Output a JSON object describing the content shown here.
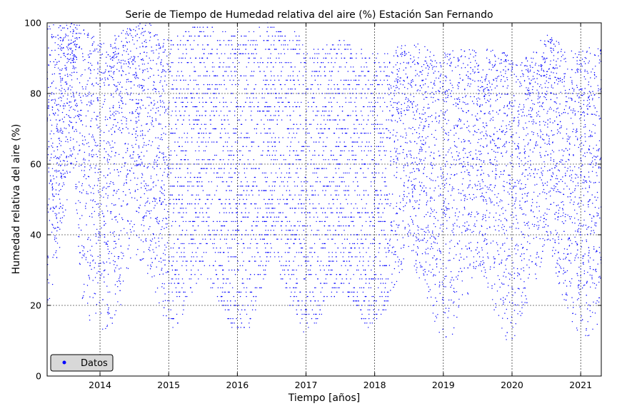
{
  "chart_data": {
    "type": "scatter",
    "title": "Serie de Tiempo de Humedad relativa del aire (%) Estación San Fernando",
    "xlabel": "Tiempo [años]",
    "ylabel": "Humedad relativa del aire (%)",
    "xlim": [
      2013.23,
      2021.3
    ],
    "ylim": [
      0,
      100
    ],
    "x_ticks": [
      2014,
      2015,
      2016,
      2017,
      2018,
      2019,
      2020,
      2021
    ],
    "y_ticks": [
      0,
      20,
      40,
      60,
      80,
      100
    ],
    "grid": true,
    "legend": {
      "position": "lower-left",
      "entries": [
        "Datos"
      ]
    },
    "series": [
      {
        "name": "Datos",
        "color": "#0000ff",
        "marker": "point",
        "envelope": [
          {
            "x": 2013.25,
            "y_min": 17,
            "y_max": 100
          },
          {
            "x": 2013.45,
            "y_min": 40,
            "y_max": 100
          },
          {
            "x": 2013.6,
            "y_min": 60,
            "y_max": 100
          },
          {
            "x": 2013.75,
            "y_min": 18,
            "y_max": 100
          },
          {
            "x": 2014.0,
            "y_min": 12,
            "y_max": 95
          },
          {
            "x": 2014.25,
            "y_min": 15,
            "y_max": 97
          },
          {
            "x": 2014.5,
            "y_min": 35,
            "y_max": 100
          },
          {
            "x": 2014.75,
            "y_min": 25,
            "y_max": 100
          },
          {
            "x": 2014.9,
            "y_min": 15,
            "y_max": 95
          },
          {
            "x": 2015.1,
            "y_min": 13,
            "y_max": 97
          },
          {
            "x": 2015.5,
            "y_min": 30,
            "y_max": 100
          },
          {
            "x": 2015.9,
            "y_min": 14,
            "y_max": 97
          },
          {
            "x": 2016.2,
            "y_min": 13,
            "y_max": 98
          },
          {
            "x": 2016.5,
            "y_min": 35,
            "y_max": 100
          },
          {
            "x": 2016.9,
            "y_min": 12,
            "y_max": 97
          },
          {
            "x": 2017.0,
            "y_min": 11,
            "y_max": 92
          },
          {
            "x": 2017.5,
            "y_min": 25,
            "y_max": 95
          },
          {
            "x": 2017.9,
            "y_min": 13,
            "y_max": 92
          },
          {
            "x": 2018.2,
            "y_min": 20,
            "y_max": 92
          },
          {
            "x": 2018.5,
            "y_min": 35,
            "y_max": 95
          },
          {
            "x": 2018.9,
            "y_min": 11,
            "y_max": 92
          },
          {
            "x": 2019.1,
            "y_min": 10,
            "y_max": 92
          },
          {
            "x": 2019.5,
            "y_min": 30,
            "y_max": 93
          },
          {
            "x": 2019.9,
            "y_min": 10,
            "y_max": 92
          },
          {
            "x": 2020.1,
            "y_min": 11,
            "y_max": 88
          },
          {
            "x": 2020.5,
            "y_min": 35,
            "y_max": 97
          },
          {
            "x": 2020.9,
            "y_min": 13,
            "y_max": 92
          },
          {
            "x": 2021.1,
            "y_min": 10,
            "y_max": 93
          },
          {
            "x": 2021.3,
            "y_min": 15,
            "y_max": 93
          }
        ]
      }
    ]
  }
}
